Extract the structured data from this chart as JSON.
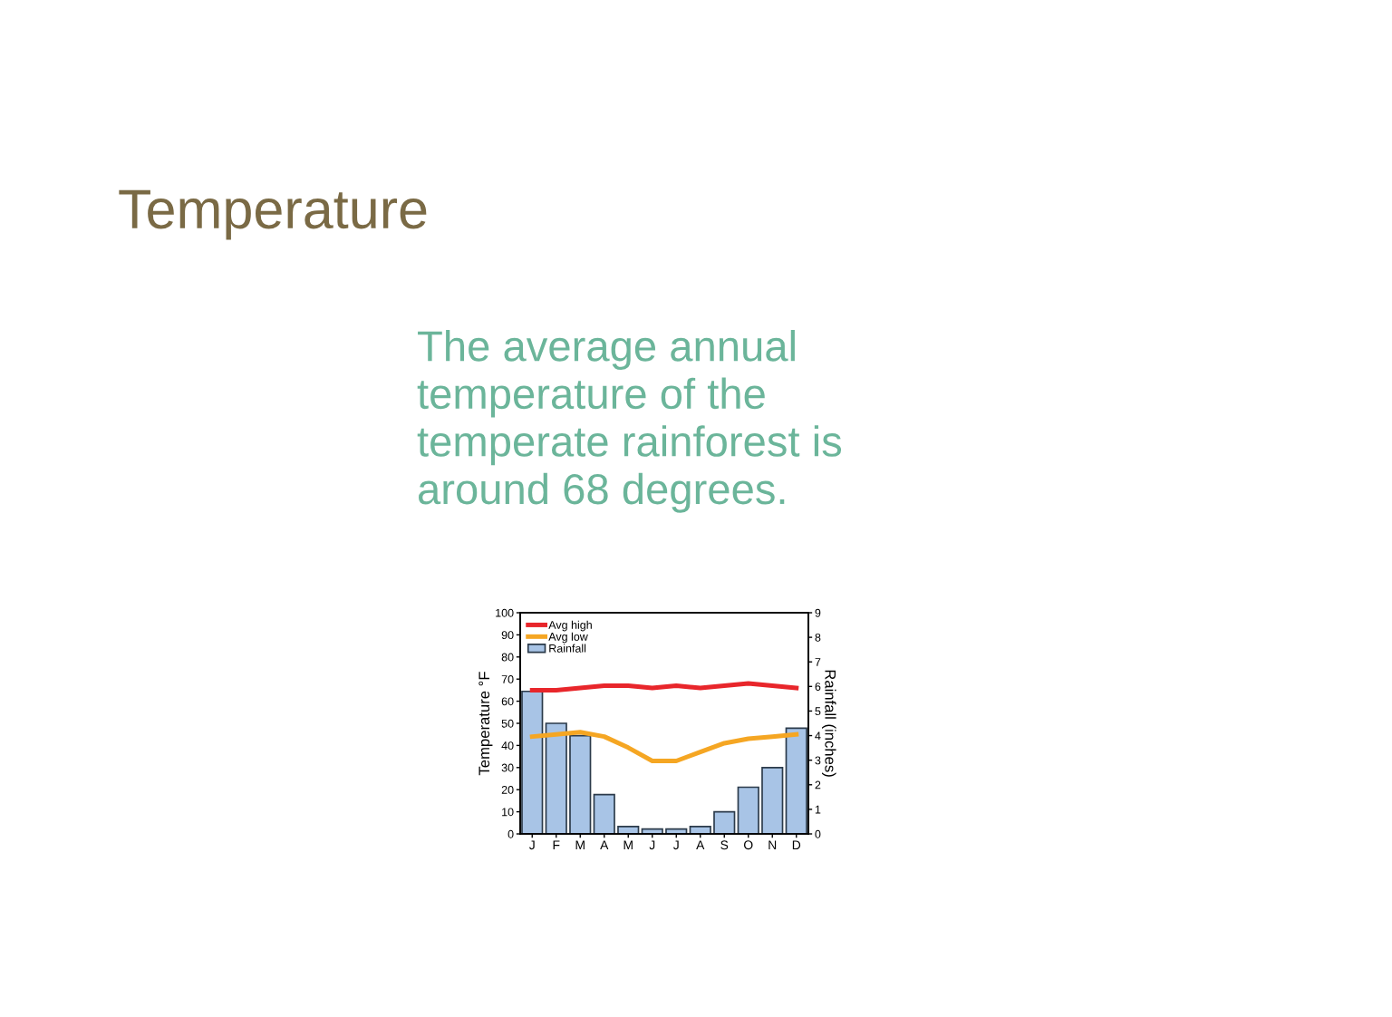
{
  "chart_data": {
    "type": "bar",
    "title": "Temperature",
    "subtitle": "The average annual\ntemperature of the\ntemperate rainforest is\naround 68 degrees.",
    "categories": [
      "J",
      "F",
      "M",
      "A",
      "M",
      "J",
      "J",
      "A",
      "S",
      "O",
      "N",
      "D"
    ],
    "series": [
      {
        "name": "Avg high",
        "type": "line",
        "color": "#e8262b",
        "values": [
          65,
          65,
          66,
          67,
          67,
          66,
          67,
          66,
          67,
          68,
          67,
          66
        ]
      },
      {
        "name": "Avg low",
        "type": "line",
        "color": "#f5a623",
        "values": [
          44,
          45,
          46,
          44,
          39,
          33,
          33,
          37,
          41,
          43,
          44,
          45
        ]
      },
      {
        "name": "Rainfall",
        "axis": "y2",
        "color": "#a8c4e6",
        "values": [
          5.8,
          4.5,
          4.0,
          1.6,
          0.3,
          0.2,
          0.2,
          0.3,
          0.9,
          1.9,
          2.7,
          4.3
        ]
      }
    ],
    "ylabel": "Temperature °F",
    "y2label": "Rainfall (inches)",
    "ylim": [
      0,
      100
    ],
    "yticks": [
      0,
      10,
      20,
      30,
      40,
      50,
      60,
      70,
      80,
      90,
      100
    ],
    "y2lim": [
      0,
      9
    ],
    "y2ticks": [
      0,
      1,
      2,
      3,
      4,
      5,
      6,
      7,
      8,
      9
    ],
    "legend": "top left",
    "grid": false
  }
}
